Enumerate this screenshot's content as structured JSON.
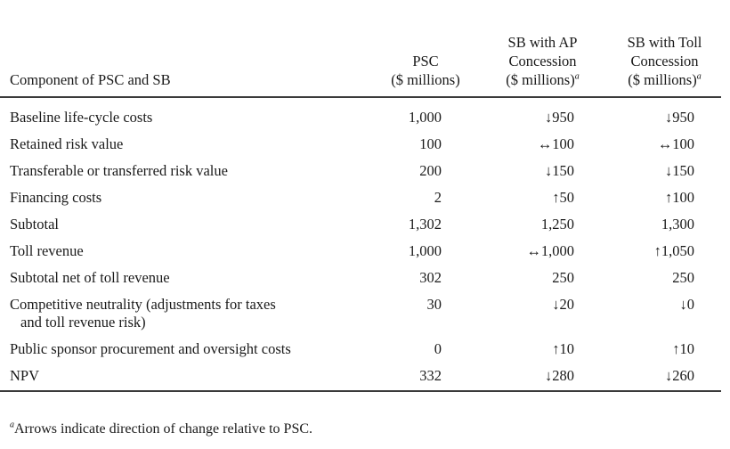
{
  "headers": {
    "component": "Component of PSC and SB",
    "psc": [
      "PSC",
      "($ millions)"
    ],
    "ap": [
      "SB with AP",
      "Concession",
      "($ millions)"
    ],
    "toll": [
      "SB with Toll",
      "Concession",
      "($ millions)"
    ],
    "footnote_marker": "a"
  },
  "rows": [
    {
      "label": "Baseline life-cycle costs",
      "label2": "",
      "psc": "1,000",
      "ap": "↓950",
      "toll": "↓950"
    },
    {
      "label": "Retained risk value",
      "label2": "",
      "psc": "100",
      "ap": "↔100",
      "toll": "↔100"
    },
    {
      "label": "Transferable or transferred risk value",
      "label2": "",
      "psc": "200",
      "ap": "↓150",
      "toll": "↓150"
    },
    {
      "label": "Financing costs",
      "label2": "",
      "psc": "2",
      "ap": "↑50",
      "toll": "↑100"
    },
    {
      "label": "Subtotal",
      "label2": "",
      "psc": "1,302",
      "ap": "1,250",
      "toll": "1,300"
    },
    {
      "label": "Toll revenue",
      "label2": "",
      "psc": "1,000",
      "ap": "↔1,000",
      "toll": "↑1,050"
    },
    {
      "label": "Subtotal net of toll revenue",
      "label2": "",
      "psc": "302",
      "ap": "250",
      "toll": "250"
    },
    {
      "label": "Competitive neutrality (adjustments for taxes",
      "label2": "and toll revenue risk)",
      "psc": "30",
      "ap": "↓20",
      "toll": "↓0"
    },
    {
      "label": "Public sponsor procurement and oversight costs",
      "label2": "",
      "psc": "0",
      "ap": "↑10",
      "toll": "↑10"
    },
    {
      "label": "NPV",
      "label2": "",
      "psc": "332",
      "ap": "↓280",
      "toll": "↓260"
    }
  ],
  "footnote": {
    "marker": "a",
    "text": "Arrows indicate direction of change relative to PSC."
  }
}
